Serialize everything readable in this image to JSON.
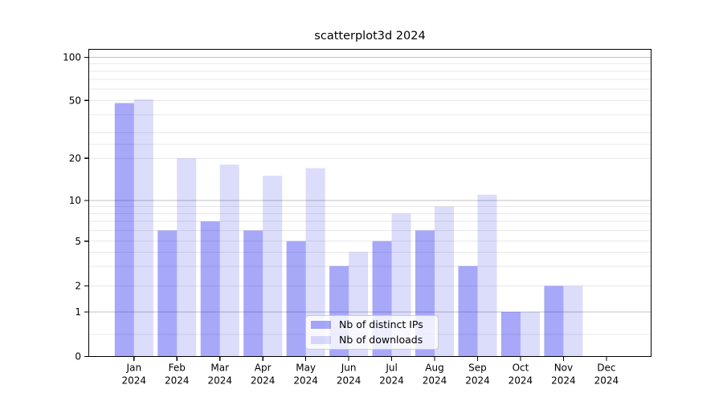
{
  "chart_data": {
    "type": "bar",
    "title": "scatterplot3d 2024",
    "categories": [
      "Jan",
      "Feb",
      "Mar",
      "Apr",
      "May",
      "Jun",
      "Jul",
      "Aug",
      "Sep",
      "Oct",
      "Nov",
      "Dec"
    ],
    "category_sublabel": "2024",
    "series": [
      {
        "name": "Nb of distinct IPs",
        "color": "#a8a8f8",
        "values": [
          48,
          6,
          7,
          6,
          5,
          3,
          5,
          6,
          3,
          1,
          2,
          0
        ]
      },
      {
        "name": "Nb of downloads",
        "color": "#dcdcfa",
        "values": [
          51,
          20,
          18,
          15,
          17,
          4,
          8,
          9,
          11,
          1,
          2,
          0
        ]
      }
    ],
    "y_axis": {
      "scale": "symlog",
      "range": [
        0,
        100
      ],
      "ticks": [
        0,
        1,
        2,
        5,
        10,
        20,
        50,
        100
      ],
      "tick_labels": [
        "0",
        "1",
        "2",
        "5",
        "10",
        "20",
        "50",
        "100"
      ],
      "minor_ticks": [
        0.5,
        3,
        4,
        6,
        7,
        8,
        9,
        25,
        30,
        40,
        60,
        70,
        80,
        90
      ],
      "emphasized_gridlines": [
        1,
        10,
        100
      ]
    },
    "legend": {
      "position": "lower center",
      "entries": [
        "Nb of distinct IPs",
        "Nb of downloads"
      ]
    },
    "grid": true
  },
  "colors": {
    "bar_distinct_ips": "#a8a8f8",
    "bar_distinct_ips_rgba": "rgba(6,6,235,0.35)",
    "bar_downloads": "#dcdcfa",
    "bar_downloads_rgba": "rgba(10,10,225,0.14)",
    "grid_major": "#c0c0c0",
    "grid_minor": "#e9e9e9",
    "axis": "#000000",
    "text": "#000000",
    "background": "#ffffff",
    "legend_border": "#cccccc"
  }
}
